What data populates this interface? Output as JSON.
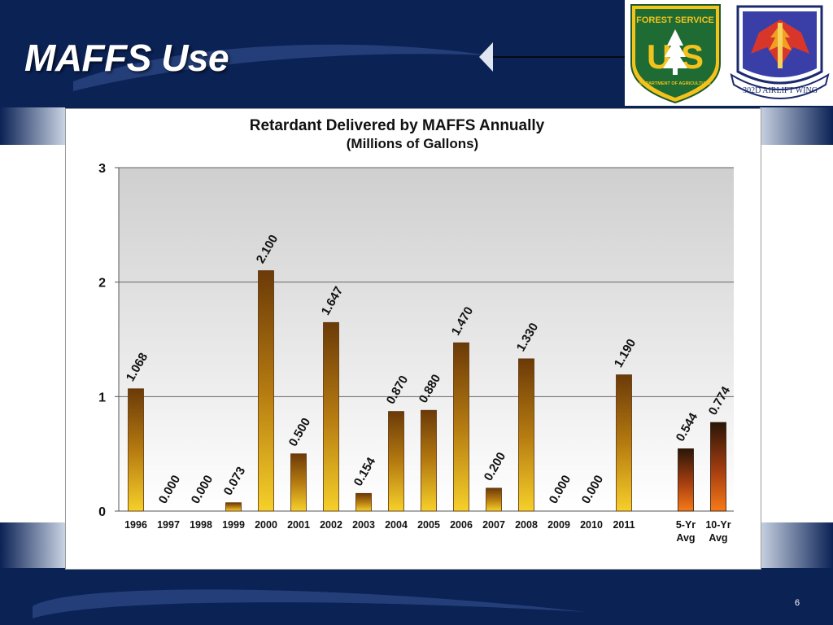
{
  "slide": {
    "title": "MAFFS Use",
    "page_number": "6"
  },
  "logos": {
    "forest_service": {
      "top_text": "FOREST SERVICE",
      "letters": "U S",
      "bottom_text": "DEPARTMENT OF AGRICULTURE"
    },
    "airlift_wing": {
      "text": "302D AIRLIFT WING"
    }
  },
  "colors": {
    "slide_navy": "#0b2255",
    "bar_gold": "#d9a21e",
    "bar_orange": "#e8581a"
  },
  "chart_data": {
    "type": "bar",
    "title": "Retardant Delivered by MAFFS Annually",
    "subtitle": "(Millions of Gallons)",
    "categories": [
      "1996",
      "1997",
      "1998",
      "1999",
      "2000",
      "2001",
      "2002",
      "2003",
      "2004",
      "2005",
      "2006",
      "2007",
      "2008",
      "2009",
      "2010",
      "2011",
      "5-Yr Avg",
      "10-Yr Avg"
    ],
    "values": [
      1.068,
      0.0,
      0.0,
      0.073,
      2.1,
      0.5,
      1.647,
      0.154,
      0.87,
      0.88,
      1.47,
      0.2,
      1.33,
      0.0,
      0.0,
      1.19,
      0.544,
      0.774
    ],
    "value_labels": [
      "1.068",
      "0.000",
      "0.000",
      "0.073",
      "2.100",
      "0.500",
      "1.647",
      "0.154",
      "0.870",
      "0.880",
      "1.470",
      "0.200",
      "1.330",
      "0.000",
      "0.000",
      "1.190",
      "0.544",
      "0.774"
    ],
    "ylim": [
      0,
      3
    ],
    "yticks": [
      "0",
      "1",
      "2",
      "3"
    ],
    "xlabel": "",
    "ylabel": "",
    "grid": true,
    "legend": "none"
  }
}
